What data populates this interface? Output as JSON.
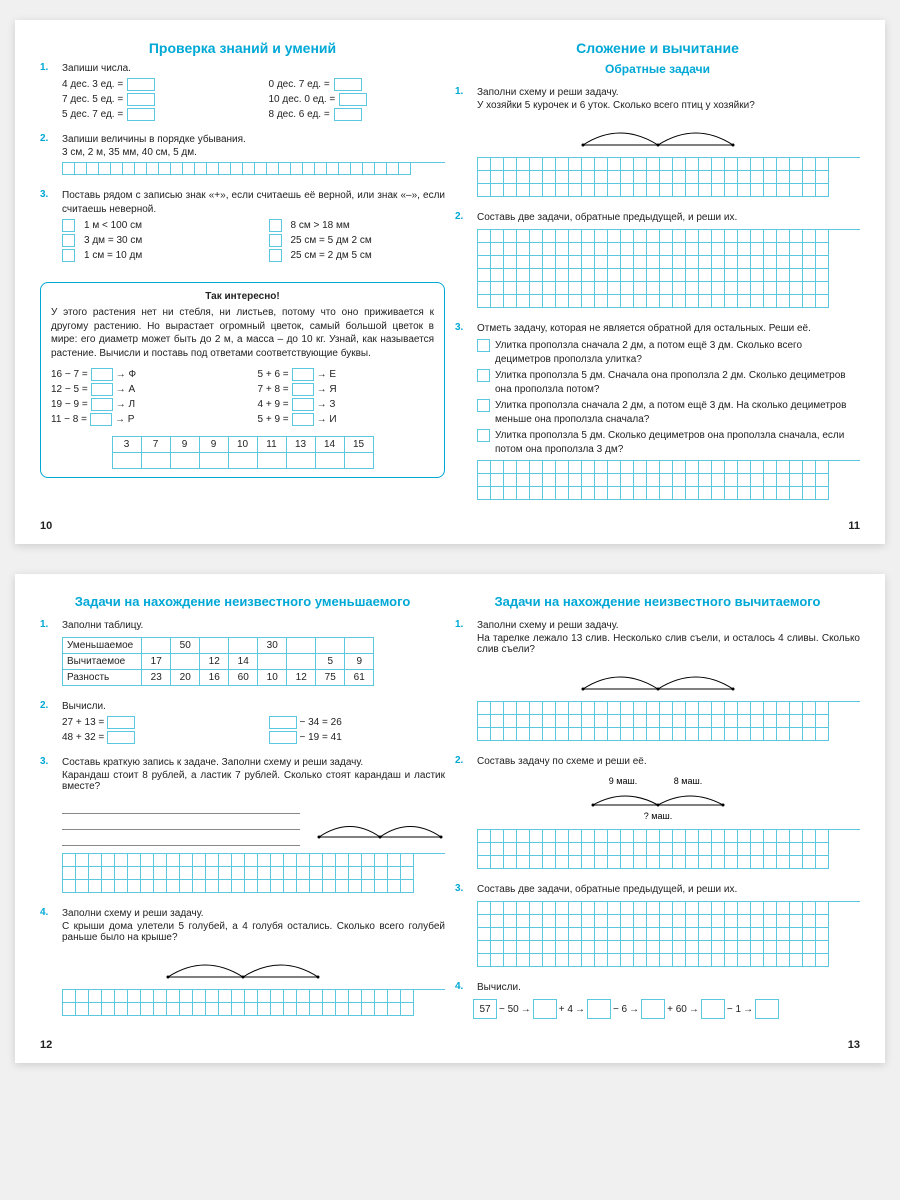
{
  "colors": {
    "accent": "#00a8d6",
    "grid": "#5cc8e0"
  },
  "spread1": {
    "left": {
      "title": "Проверка знаний и умений",
      "ex1": {
        "num": "1.",
        "text": "Запиши числа.",
        "lines": [
          [
            "4 дес. 3 ед. =",
            "0 дес. 7 ед. ="
          ],
          [
            "7 дес. 5 ед. =",
            "10 дес. 0 ед. ="
          ],
          [
            "5 дес. 7 ед. =",
            "8 дес. 6 ед. ="
          ]
        ]
      },
      "ex2": {
        "num": "2.",
        "text": "Запиши величины в порядке убывания.",
        "values": "3 см, 2 м, 35 мм, 40 см, 5 дм."
      },
      "ex3": {
        "num": "3.",
        "text": "Поставь рядом с записью знак «+», если считаешь её верной, или знак «–», если считаешь неверной.",
        "items": [
          [
            "1 м < 100 см",
            "8 см > 18 мм"
          ],
          [
            "3 дм = 30 см",
            "25 см = 5 дм 2 см"
          ],
          [
            "1 см = 10 дм",
            "25 см = 2 дм 5 см"
          ]
        ]
      },
      "info": {
        "title": "Так интересно!",
        "text": "У этого растения нет ни стебля, ни листьев, потому что оно приживается к другому растению. Но вырастает огромный цветок, самый большой цветок в мире: его диаметр может быть до 2 м, а масса – до 10 кг. Узнай, как называется растение. Вычисли и поставь под ответами соответствующие буквы.",
        "eqs": [
          [
            "16 − 7 =",
            "→ Ф",
            "5 + 6 =",
            "→ Е"
          ],
          [
            "12 − 5 =",
            "→ А",
            "7 + 8 =",
            "→ Я"
          ],
          [
            "19 − 9 =",
            "→ Л",
            "4 + 9 =",
            "→ З"
          ],
          [
            "11 − 8 =",
            "→ Р",
            "5 + 9 =",
            "→ И"
          ]
        ],
        "table": [
          "3",
          "7",
          "9",
          "9",
          "10",
          "11",
          "13",
          "14",
          "15"
        ]
      },
      "pagenum": "10"
    },
    "right": {
      "title": "Сложение и вычитание",
      "subtitle": "Обратные задачи",
      "ex1": {
        "num": "1.",
        "text": "Заполни схему и реши задачу.",
        "problem": "У хозяйки 5 курочек и 6 уток. Сколько всего птиц у хозяйки?"
      },
      "ex2": {
        "num": "2.",
        "text": "Составь две задачи, обратные предыдущей, и реши их."
      },
      "ex3": {
        "num": "3.",
        "text": "Отметь задачу, которая не является обратной для остальных. Реши её.",
        "options": [
          "Улитка проползла сначала 2 дм, а потом ещё 3 дм. Сколько всего дециметров проползла улитка?",
          "Улитка проползла 5 дм. Сначала она проползла 2 дм. Сколько дециметров она проползла потом?",
          "Улитка проползла сначала 2 дм, а потом ещё 3 дм. На сколько дециметров меньше она проползла сначала?",
          "Улитка проползла 5 дм. Сколько дециметров она проползла сначала, если потом она проползла 3 дм?"
        ]
      },
      "pagenum": "11"
    }
  },
  "spread2": {
    "left": {
      "title": "Задачи на нахождение неизвестного уменьшаемого",
      "ex1": {
        "num": "1.",
        "text": "Заполни таблицу.",
        "table": {
          "rows": [
            "Уменьшаемое",
            "Вычитаемое",
            "Разность"
          ],
          "data": [
            [
              "",
              "50",
              "",
              "",
              "30",
              "",
              "",
              ""
            ],
            [
              "17",
              "",
              "12",
              "14",
              "",
              "",
              "5",
              "9"
            ],
            [
              "23",
              "20",
              "16",
              "60",
              "10",
              "12",
              "75",
              "61"
            ]
          ]
        }
      },
      "ex2": {
        "num": "2.",
        "text": "Вычисли.",
        "lines": [
          [
            "27 + 13 =",
            "− 34 = 26"
          ],
          [
            "48 + 32 =",
            "− 19 = 41"
          ]
        ]
      },
      "ex3": {
        "num": "3.",
        "text": "Составь краткую запись к задаче. Заполни схему и реши задачу.",
        "problem": "Карандаш стоит 8 рублей, а ластик 7 рублей. Сколько стоят карандаш и ластик вместе?"
      },
      "ex4": {
        "num": "4.",
        "text": "Заполни схему и реши задачу.",
        "problem": "С крыши дома улетели 5 голубей, а 4 голубя остались. Сколько всего голубей раньше было на крыше?"
      },
      "pagenum": "12"
    },
    "right": {
      "title": "Задачи на нахождение неизвестного вычитаемого",
      "ex1": {
        "num": "1.",
        "text": "Заполни схему и реши задачу.",
        "problem": "На тарелке лежало 13 слив. Несколько слив съели, и осталось 4 сливы. Сколько слив съели?"
      },
      "ex2": {
        "num": "2.",
        "text": "Составь задачу по схеме и реши её.",
        "labels": {
          "l": "9 маш.",
          "r": "8 маш.",
          "b": "? маш."
        }
      },
      "ex3": {
        "num": "3.",
        "text": "Составь две задачи, обратные предыдущей, и реши их."
      },
      "ex4": {
        "num": "4.",
        "text": "Вычисли.",
        "start": "57",
        "ops": [
          "− 50",
          "+ 4",
          "− 6",
          "+ 60",
          "− 1"
        ]
      },
      "pagenum": "13"
    }
  }
}
